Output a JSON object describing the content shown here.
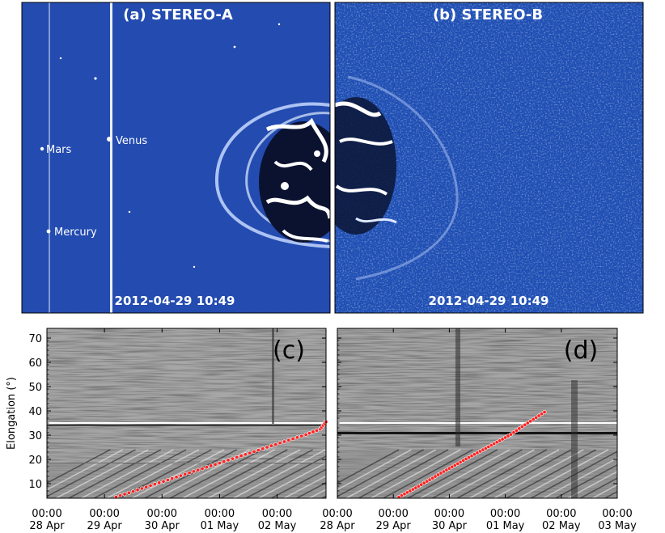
{
  "panel_a": {
    "title": "(a) STEREO-A",
    "timestamp": "2012-04-29 10:49",
    "planets": [
      {
        "name": "Mars"
      },
      {
        "name": "Venus"
      },
      {
        "name": "Mercury"
      }
    ]
  },
  "panel_b": {
    "title": "(b) STEREO-B",
    "timestamp": "2012-04-29 10:49"
  },
  "chart_data": [
    {
      "type": "scatter",
      "panel_label": "(c)",
      "ylabel": "Elongation (°)",
      "ylim": [
        4,
        74
      ],
      "y_ticks": [
        10,
        20,
        30,
        40,
        50,
        60,
        70
      ],
      "x_ticks": [
        {
          "time": "00:00",
          "date": "28 Apr"
        },
        {
          "time": "00:00",
          "date": "29 Apr"
        },
        {
          "time": "00:00",
          "date": "30 Apr"
        },
        {
          "time": "00:00",
          "date": "01 May"
        },
        {
          "time": "00:00",
          "date": "02 May"
        }
      ],
      "xlim_days": [
        0,
        4.85
      ],
      "series": [
        {
          "x_days": [
            1.2,
            1.5,
            1.8,
            2.1,
            2.4,
            2.7,
            3.0,
            3.3,
            3.6,
            3.9,
            4.2,
            4.5,
            4.75,
            4.85
          ],
          "y": [
            4.5,
            6.8,
            9.2,
            11.5,
            13.9,
            16.2,
            18.5,
            20.9,
            23.2,
            25.6,
            27.9,
            30.2,
            32.5,
            35.5
          ]
        }
      ]
    },
    {
      "type": "scatter",
      "panel_label": "(d)",
      "ylim": [
        4,
        74
      ],
      "y_ticks": [
        10,
        20,
        30,
        40,
        50,
        60,
        70
      ],
      "x_ticks": [
        {
          "time": "00:00",
          "date": "28 Apr"
        },
        {
          "time": "00:00",
          "date": "29 Apr"
        },
        {
          "time": "00:00",
          "date": "30 Apr"
        },
        {
          "time": "00:00",
          "date": "01 May"
        },
        {
          "time": "00:00",
          "date": "02 May"
        },
        {
          "time": "00:00",
          "date": "03 May"
        }
      ],
      "xlim_days": [
        0,
        5.0
      ],
      "series": [
        {
          "x_days": [
            1.1,
            1.3,
            1.5,
            1.7,
            1.9,
            2.1,
            2.3,
            2.5,
            2.7,
            2.9,
            3.1,
            3.3,
            3.5,
            3.7
          ],
          "y": [
            4.5,
            7.0,
            9.6,
            12.3,
            15.0,
            17.6,
            20.2,
            22.7,
            25.2,
            27.7,
            30.3,
            33.5,
            36.5,
            39.5
          ]
        }
      ]
    }
  ]
}
